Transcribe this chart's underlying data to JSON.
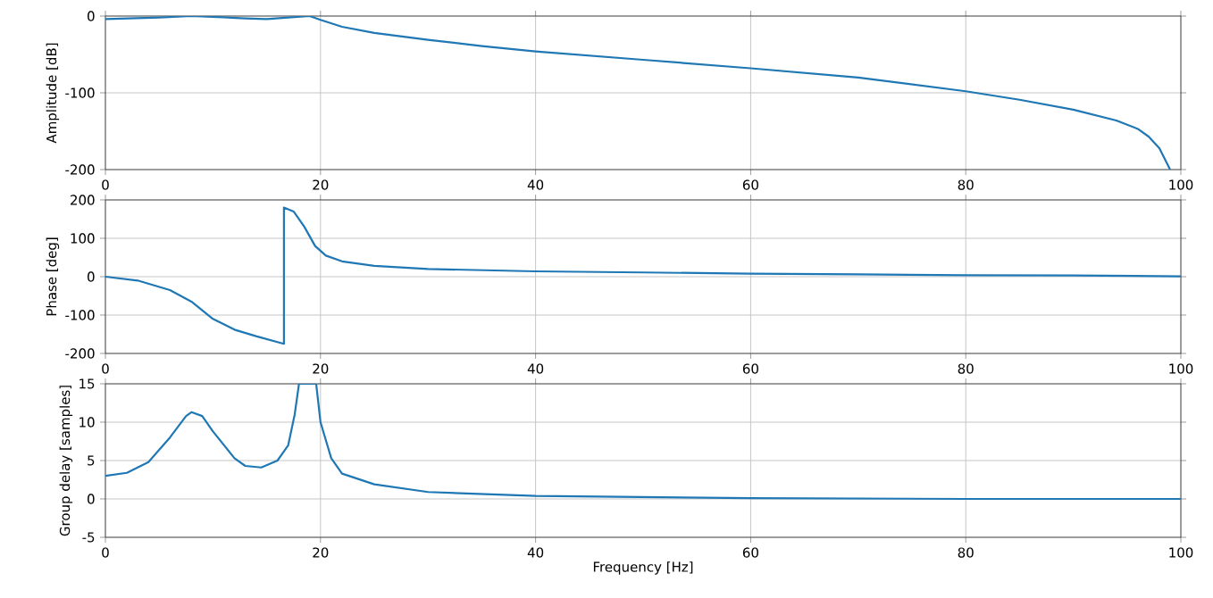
{
  "chart_data": [
    {
      "type": "line",
      "ylabel": "Amplitude [dB]",
      "xlim": [
        0,
        100
      ],
      "ylim": [
        -200,
        0
      ],
      "xticks": [
        0,
        20,
        40,
        60,
        80,
        100
      ],
      "yticks": [
        -200,
        -100,
        0
      ],
      "grid": true,
      "color": "#1f77b4",
      "x": [
        0,
        5,
        8,
        10,
        13,
        15,
        17,
        19,
        20,
        22,
        25,
        30,
        35,
        40,
        50,
        60,
        70,
        80,
        85,
        90,
        94,
        96,
        97,
        98,
        99
      ],
      "values": [
        -4,
        -2,
        0,
        -1,
        -3,
        -4,
        -2,
        0,
        -5,
        -14,
        -22,
        -31,
        -39,
        -46,
        -57,
        -68,
        -80,
        -98,
        -109,
        -122,
        -136,
        -147,
        -157,
        -172,
        -200
      ]
    },
    {
      "type": "line",
      "ylabel": "Phase [deg]",
      "xlim": [
        0,
        100
      ],
      "ylim": [
        -200,
        200
      ],
      "xticks": [
        0,
        20,
        40,
        60,
        80,
        100
      ],
      "yticks": [
        -200,
        -100,
        0,
        100,
        200
      ],
      "grid": true,
      "color": "#1f77b4",
      "x": [
        0,
        3,
        6,
        8,
        10,
        12,
        14,
        16.6,
        16.6,
        17.5,
        18.5,
        19.5,
        20.5,
        22,
        25,
        30,
        40,
        50,
        60,
        70,
        80,
        90,
        100
      ],
      "values": [
        0,
        -10,
        -35,
        -65,
        -110,
        -138,
        -155,
        -175,
        180,
        170,
        130,
        80,
        55,
        40,
        28,
        20,
        14,
        11,
        8,
        6,
        4,
        3,
        1
      ]
    },
    {
      "type": "line",
      "xlabel": "Frequency [Hz]",
      "ylabel": "Group delay [samples]",
      "xlim": [
        0,
        100
      ],
      "ylim": [
        -5,
        15
      ],
      "xticks": [
        0,
        20,
        40,
        60,
        80,
        100
      ],
      "yticks": [
        -5,
        0,
        5,
        10,
        15
      ],
      "grid": true,
      "color": "#1f77b4",
      "x": [
        0,
        2,
        4,
        6,
        7.5,
        8,
        9,
        10,
        12,
        13,
        14.5,
        16,
        17,
        17.6,
        18,
        19.6,
        20,
        21,
        22,
        25,
        30,
        40,
        60,
        80,
        100
      ],
      "values": [
        3,
        3.4,
        4.8,
        8,
        10.8,
        11.3,
        10.8,
        8.8,
        5.3,
        4.3,
        4.1,
        5,
        7,
        11,
        15,
        15,
        10,
        5.3,
        3.3,
        1.9,
        0.9,
        0.4,
        0.1,
        0,
        0
      ]
    }
  ]
}
